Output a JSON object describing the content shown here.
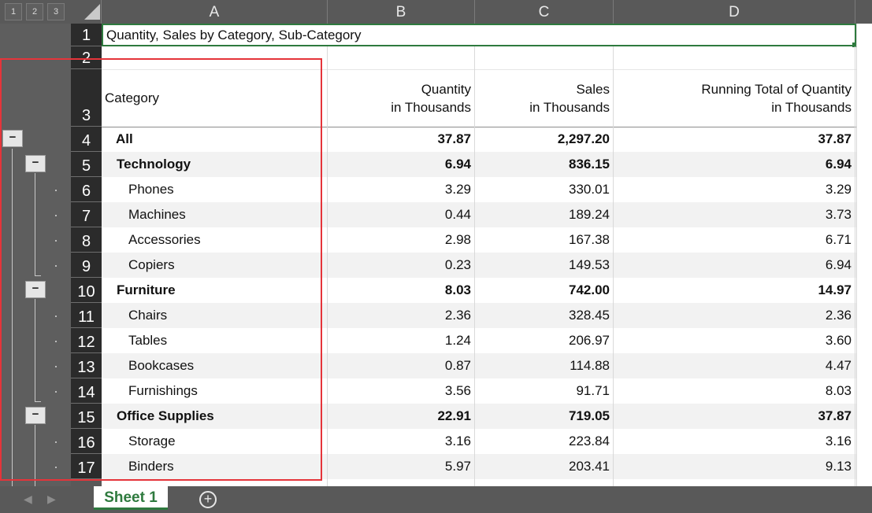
{
  "outline_levels": [
    "1",
    "2",
    "3"
  ],
  "columns": [
    "A",
    "B",
    "C",
    "D"
  ],
  "row_numbers": [
    "1",
    "2",
    "3",
    "4",
    "5",
    "6",
    "7",
    "8",
    "9",
    "10",
    "11",
    "12",
    "13",
    "14",
    "15",
    "16",
    "17"
  ],
  "title_cell": "Quantity, Sales by Category, Sub-Category",
  "headers": {
    "a": "Category",
    "b_line1": "Quantity",
    "b_line2": "in Thousands",
    "c_line1": "Sales",
    "c_line2": "in Thousands",
    "d_line1": "Running Total of Quantity",
    "d_line2": "in Thousands"
  },
  "rows": [
    {
      "label": "All",
      "qty": "37.87",
      "sales": "2,297.20",
      "running": "37.87"
    },
    {
      "label": "Technology",
      "qty": "6.94",
      "sales": "836.15",
      "running": "6.94"
    },
    {
      "label": "Phones",
      "qty": "3.29",
      "sales": "330.01",
      "running": "3.29"
    },
    {
      "label": "Machines",
      "qty": "0.44",
      "sales": "189.24",
      "running": "3.73"
    },
    {
      "label": "Accessories",
      "qty": "2.98",
      "sales": "167.38",
      "running": "6.71"
    },
    {
      "label": "Copiers",
      "qty": "0.23",
      "sales": "149.53",
      "running": "6.94"
    },
    {
      "label": "Furniture",
      "qty": "8.03",
      "sales": "742.00",
      "running": "14.97"
    },
    {
      "label": "Chairs",
      "qty": "2.36",
      "sales": "328.45",
      "running": "2.36"
    },
    {
      "label": "Tables",
      "qty": "1.24",
      "sales": "206.97",
      "running": "3.60"
    },
    {
      "label": "Bookcases",
      "qty": "0.87",
      "sales": "114.88",
      "running": "4.47"
    },
    {
      "label": "Furnishings",
      "qty": "3.56",
      "sales": "91.71",
      "running": "8.03"
    },
    {
      "label": "Office Supplies",
      "qty": "22.91",
      "sales": "719.05",
      "running": "37.87"
    },
    {
      "label": "Storage",
      "qty": "3.16",
      "sales": "223.84",
      "running": "3.16"
    },
    {
      "label": "Binders",
      "qty": "5.97",
      "sales": "203.41",
      "running": "9.13"
    }
  ],
  "collapse_symbol": "−",
  "sheet_tab": "Sheet 1",
  "add_sheet_symbol": "+",
  "nav_prev": "◀",
  "nav_next": "▶",
  "colors": {
    "tab_green": "#2e7a3e",
    "highlight_red": "#e5343a",
    "grid_bg": "#595959"
  }
}
